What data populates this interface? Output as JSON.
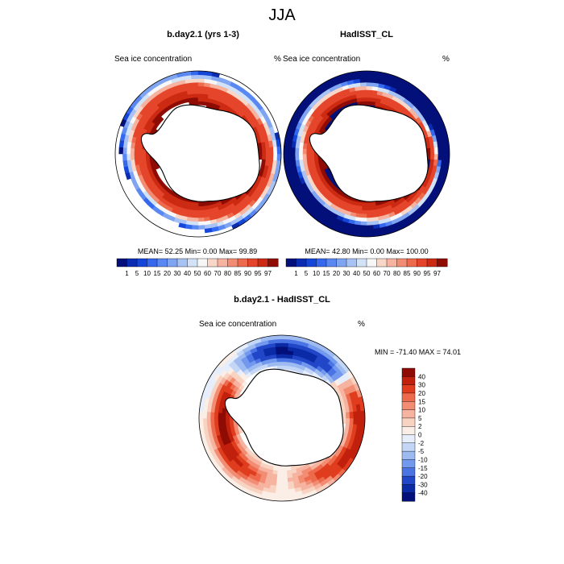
{
  "title": "JJA",
  "chart_data": [
    {
      "type": "heatmap",
      "projection": "south-polar-stereographic",
      "title": "b.day2.1 (yrs 1-3)",
      "variable": "Sea ice concentration",
      "units": "%",
      "stats": {
        "mean": "52.25",
        "min": "0.00",
        "max": "99.89"
      },
      "stats_text": "MEAN=  52.25  Min=   0.00  Max=  99.89",
      "colorbar": {
        "orientation": "horizontal",
        "levels": [
          "1",
          "5",
          "10",
          "15",
          "20",
          "30",
          "40",
          "50",
          "60",
          "70",
          "80",
          "85",
          "90",
          "95",
          "97"
        ],
        "colors": [
          "#03107a",
          "#0a2cb0",
          "#1446d9",
          "#3468ee",
          "#5a88f2",
          "#7ea4f2",
          "#a7c2f4",
          "#d2e2f7",
          "#f7f7f7",
          "#f9d7c8",
          "#f6b3a0",
          "#f28d73",
          "#ee6a4d",
          "#e5462b",
          "#cc2a12",
          "#8e0c04"
        ]
      },
      "field_bias": 1.0
    },
    {
      "type": "heatmap",
      "projection": "south-polar-stereographic",
      "title": "HadISST_CL",
      "variable": "Sea ice concentration",
      "units": "%",
      "stats": {
        "mean": "42.80",
        "min": "0.00",
        "max": "100.00"
      },
      "stats_text": "MEAN=  42.80  Min=   0.00  Max= 100.00",
      "colorbar": {
        "orientation": "horizontal",
        "levels": [
          "1",
          "5",
          "10",
          "15",
          "20",
          "30",
          "40",
          "50",
          "60",
          "70",
          "80",
          "85",
          "90",
          "95",
          "97"
        ],
        "colors": [
          "#03107a",
          "#0a2cb0",
          "#1446d9",
          "#3468ee",
          "#5a88f2",
          "#7ea4f2",
          "#a7c2f4",
          "#d2e2f7",
          "#f7f7f7",
          "#f9d7c8",
          "#f6b3a0",
          "#f28d73",
          "#ee6a4d",
          "#e5462b",
          "#cc2a12",
          "#8e0c04"
        ]
      },
      "field_bias": 0.0
    },
    {
      "type": "heatmap",
      "projection": "south-polar-stereographic",
      "title": "b.day2.1 - HadISST_CL",
      "variable": "Sea ice concentration",
      "units": "%",
      "stats": {
        "min": "-71.40",
        "max": "74.01"
      },
      "stats_text": "MIN = -71.40 MAX =  74.01",
      "colorbar": {
        "orientation": "vertical",
        "levels": [
          "40",
          "30",
          "20",
          "15",
          "10",
          "5",
          "2",
          "0",
          "-2",
          "-5",
          "-10",
          "-15",
          "-20",
          "-30",
          "-40"
        ],
        "colors": [
          "#8e0c04",
          "#c0200c",
          "#df3d1e",
          "#ee6a4d",
          "#f28d73",
          "#f6b3a0",
          "#f9d3c2",
          "#fbeee6",
          "#e6eefb",
          "#c4d6f6",
          "#9ebbf1",
          "#7399ee",
          "#4a74e4",
          "#2246c8",
          "#0a2aa6",
          "#03107a"
        ]
      },
      "difference_regions": [
        {
          "sector": "Weddell Sea",
          "sign": "negative"
        },
        {
          "sector": "Indian Ocean",
          "sign": "negative"
        },
        {
          "sector": "Bellingshausen Sea",
          "sign": "positive"
        },
        {
          "sector": "East Antarctic coast",
          "sign": "positive"
        }
      ]
    }
  ]
}
